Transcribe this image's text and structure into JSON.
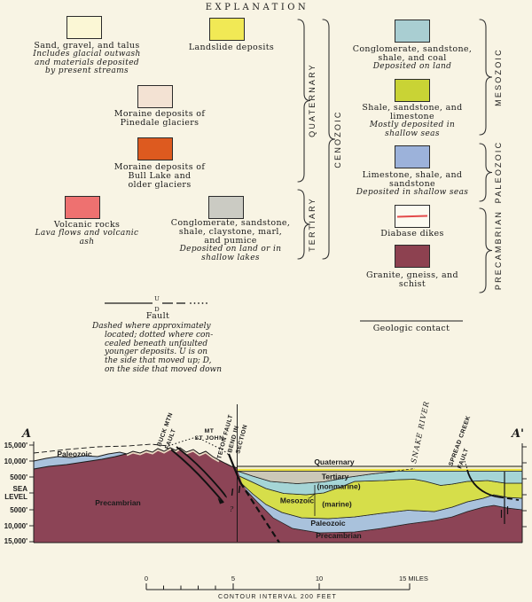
{
  "title": "EXPLANATION",
  "colors": {
    "paper": "#f8f4e4",
    "sand": "#fbf7d5",
    "landslide": "#f1e955",
    "pinedale": "#f3e2d3",
    "bull_lake": "#dd5a1f",
    "volcanic": "#ee7170",
    "tert_conglomerate": "#cbcbc3",
    "meso_nonmarine": "#a9ced2",
    "meso_marine": "#c9d335",
    "paleozoic": "#9cb2da",
    "diabase_line": "#e34b4b",
    "precambrian": "#8d4150",
    "sect_precambrian": "#8c4456",
    "sect_paleozoic": "#a9c2dc",
    "sect_marine": "#d6de4a",
    "sect_nonmarine": "#a5d5d6",
    "sect_tertiary": "#cbc8b8",
    "sect_quat_cream": "#f2eec9",
    "sect_quat_yellow": "#ede23f"
  },
  "legend": {
    "items": [
      {
        "label_lines": [
          "Sand, gravel, and talus"
        ],
        "note_lines": [
          "Includes glacial outwash",
          "and materials deposited",
          "by present streams"
        ]
      },
      {
        "label_lines": [
          "Landslide deposits"
        ],
        "note_lines": []
      },
      {
        "label_lines": [
          "Moraine deposits of",
          "Pinedale glaciers"
        ],
        "note_lines": []
      },
      {
        "label_lines": [
          "Moraine deposits of",
          "Bull Lake and",
          "older glaciers"
        ],
        "note_lines": []
      },
      {
        "label_lines": [
          "Volcanic rocks"
        ],
        "note_lines": [
          "Lava flows and volcanic",
          "ash"
        ]
      },
      {
        "label_lines": [
          "Conglomerate, sandstone,",
          "shale, claystone, marl,",
          "and pumice"
        ],
        "note_lines": [
          "Deposited on land or in",
          "shallow lakes"
        ]
      },
      {
        "label_lines": [
          "Conglomerate, sandstone,",
          "shale, and coal"
        ],
        "note_lines": [
          "Deposited on land"
        ]
      },
      {
        "label_lines": [
          "Shale, sandstone, and",
          "limestone"
        ],
        "note_lines": [
          "Mostly deposited in",
          "shallow seas"
        ]
      },
      {
        "label_lines": [
          "Limestone, shale, and",
          "sandstone"
        ],
        "note_lines": [
          "Deposited in shallow seas"
        ]
      },
      {
        "label_lines": [
          "Diabase dikes"
        ],
        "note_lines": []
      },
      {
        "label_lines": [
          "Granite, gneiss, and",
          "schist"
        ],
        "note_lines": []
      }
    ],
    "eras": {
      "quaternary": "QUATERNARY",
      "tertiary": "TERTIARY",
      "cenozoic": "CENOZOIC",
      "mesozoic": "MESOZOIC",
      "paleozoic": "PALEOZOIC",
      "precambrian": "PRECAMBRIAN"
    }
  },
  "fault_symbol": {
    "u": "U",
    "d": "D",
    "label": "Fault",
    "note_lines": [
      "Dashed where approximately",
      "located; dotted where con-",
      "cealed beneath unfaulted",
      "younger deposits.  U is on",
      "the side that moved up; D,",
      "on the side that moved down"
    ]
  },
  "contact": {
    "label": "Geologic contact"
  },
  "section": {
    "a": "A",
    "a_prime": "A'",
    "axis": {
      "left": [
        "15,000'",
        "10,000'",
        "5000'",
        "SEA",
        "LEVEL",
        "5000'",
        "10,000'",
        "15,000'"
      ]
    },
    "units": {
      "paleozoic_left": "Paleozoic",
      "precambrian_left": "Precambrian",
      "quaternary": "Quaternary",
      "tertiary": "Tertiary",
      "nonmarine": "(nonmarine)",
      "mesozoic": "Mesozoic",
      "marine": "(marine)",
      "paleozoic": "Paleozoic",
      "precambrian": "Precambrian"
    },
    "faults": {
      "buck_1": "BUCK MTN",
      "buck_2": "FAULT",
      "mt_1": "MT",
      "mt_2": "ST JOHN",
      "teton_1": "TETON FAULT",
      "teton_2": "BEND IN",
      "teton_3": "SECTION",
      "snake": "SNAKE RIVER",
      "spread_1": "SPREAD CREEK",
      "spread_2": "FAULT",
      "query": "?"
    },
    "scalebar": {
      "t0": "0",
      "t5": "5",
      "t10": "10",
      "t15": "15 MILES",
      "caption": "CONTOUR INTERVAL 200 FEET"
    }
  }
}
